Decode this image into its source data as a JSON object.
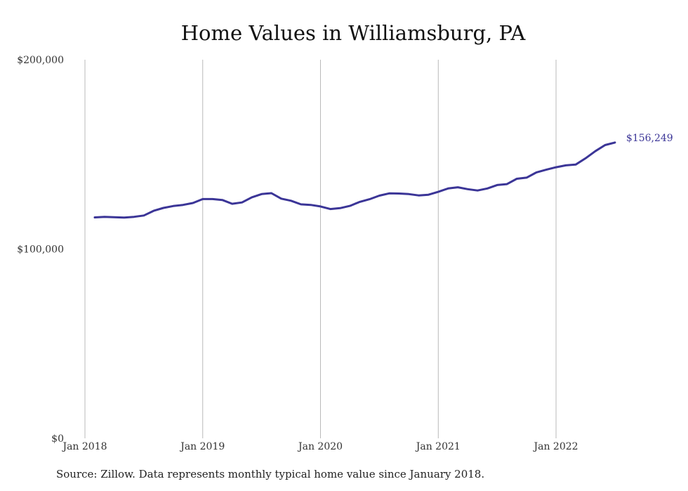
{
  "chart_data": {
    "type": "line",
    "title": "Home Values in Williamsburg, PA",
    "xlabel": "",
    "ylabel": "",
    "ylim": [
      0,
      200000
    ],
    "y_ticks": [
      {
        "value": 0,
        "label": "$0"
      },
      {
        "value": 100000,
        "label": "$100,000"
      },
      {
        "value": 200000,
        "label": "$200,000"
      }
    ],
    "x_ticks": [
      {
        "date": "2018-01",
        "label": "Jan 2018"
      },
      {
        "date": "2019-01",
        "label": "Jan 2019"
      },
      {
        "date": "2020-01",
        "label": "Jan 2020"
      },
      {
        "date": "2021-01",
        "label": "Jan 2021"
      },
      {
        "date": "2022-01",
        "label": "Jan 2022"
      }
    ],
    "xlim": [
      "2018-01",
      "2022-06"
    ],
    "grid": "vertical",
    "legend": "none",
    "line_color": "#3b3597",
    "end_label": "$156,249",
    "series": [
      {
        "x": [
          "2018-02",
          "2018-03",
          "2018-04",
          "2018-05",
          "2018-06",
          "2018-07",
          "2018-08",
          "2018-09",
          "2018-10",
          "2018-11",
          "2018-12",
          "2019-01",
          "2019-02",
          "2019-03",
          "2019-04",
          "2019-05",
          "2019-06",
          "2019-07",
          "2019-08",
          "2019-09",
          "2019-10",
          "2019-11",
          "2019-12",
          "2020-01",
          "2020-02",
          "2020-03",
          "2020-04",
          "2020-05",
          "2020-06",
          "2020-07",
          "2020-08",
          "2020-09",
          "2020-10",
          "2020-11",
          "2020-12",
          "2021-01",
          "2021-02",
          "2021-03",
          "2021-04",
          "2021-05",
          "2021-06",
          "2021-07",
          "2021-08",
          "2021-09",
          "2021-10",
          "2021-11",
          "2021-12",
          "2022-01",
          "2022-02",
          "2022-03",
          "2022-04",
          "2022-05",
          "2022-06",
          "2022-07"
        ],
        "values": [
          116700,
          117000,
          116800,
          116600,
          117000,
          117700,
          120200,
          121700,
          122700,
          123300,
          124300,
          126400,
          126400,
          125900,
          123900,
          124600,
          127300,
          129000,
          129500,
          126600,
          125500,
          123600,
          123300,
          122500,
          121100,
          121600,
          122800,
          124900,
          126300,
          128200,
          129400,
          129300,
          129000,
          128300,
          128700,
          130200,
          132000,
          132600,
          131600,
          130900,
          132000,
          133800,
          134300,
          137100,
          137700,
          140500,
          141900,
          143200,
          144200,
          144600,
          147900,
          151700,
          154900,
          156249
        ]
      }
    ]
  },
  "source_note": "Source: Zillow. Data represents monthly typical home value since January 2018."
}
